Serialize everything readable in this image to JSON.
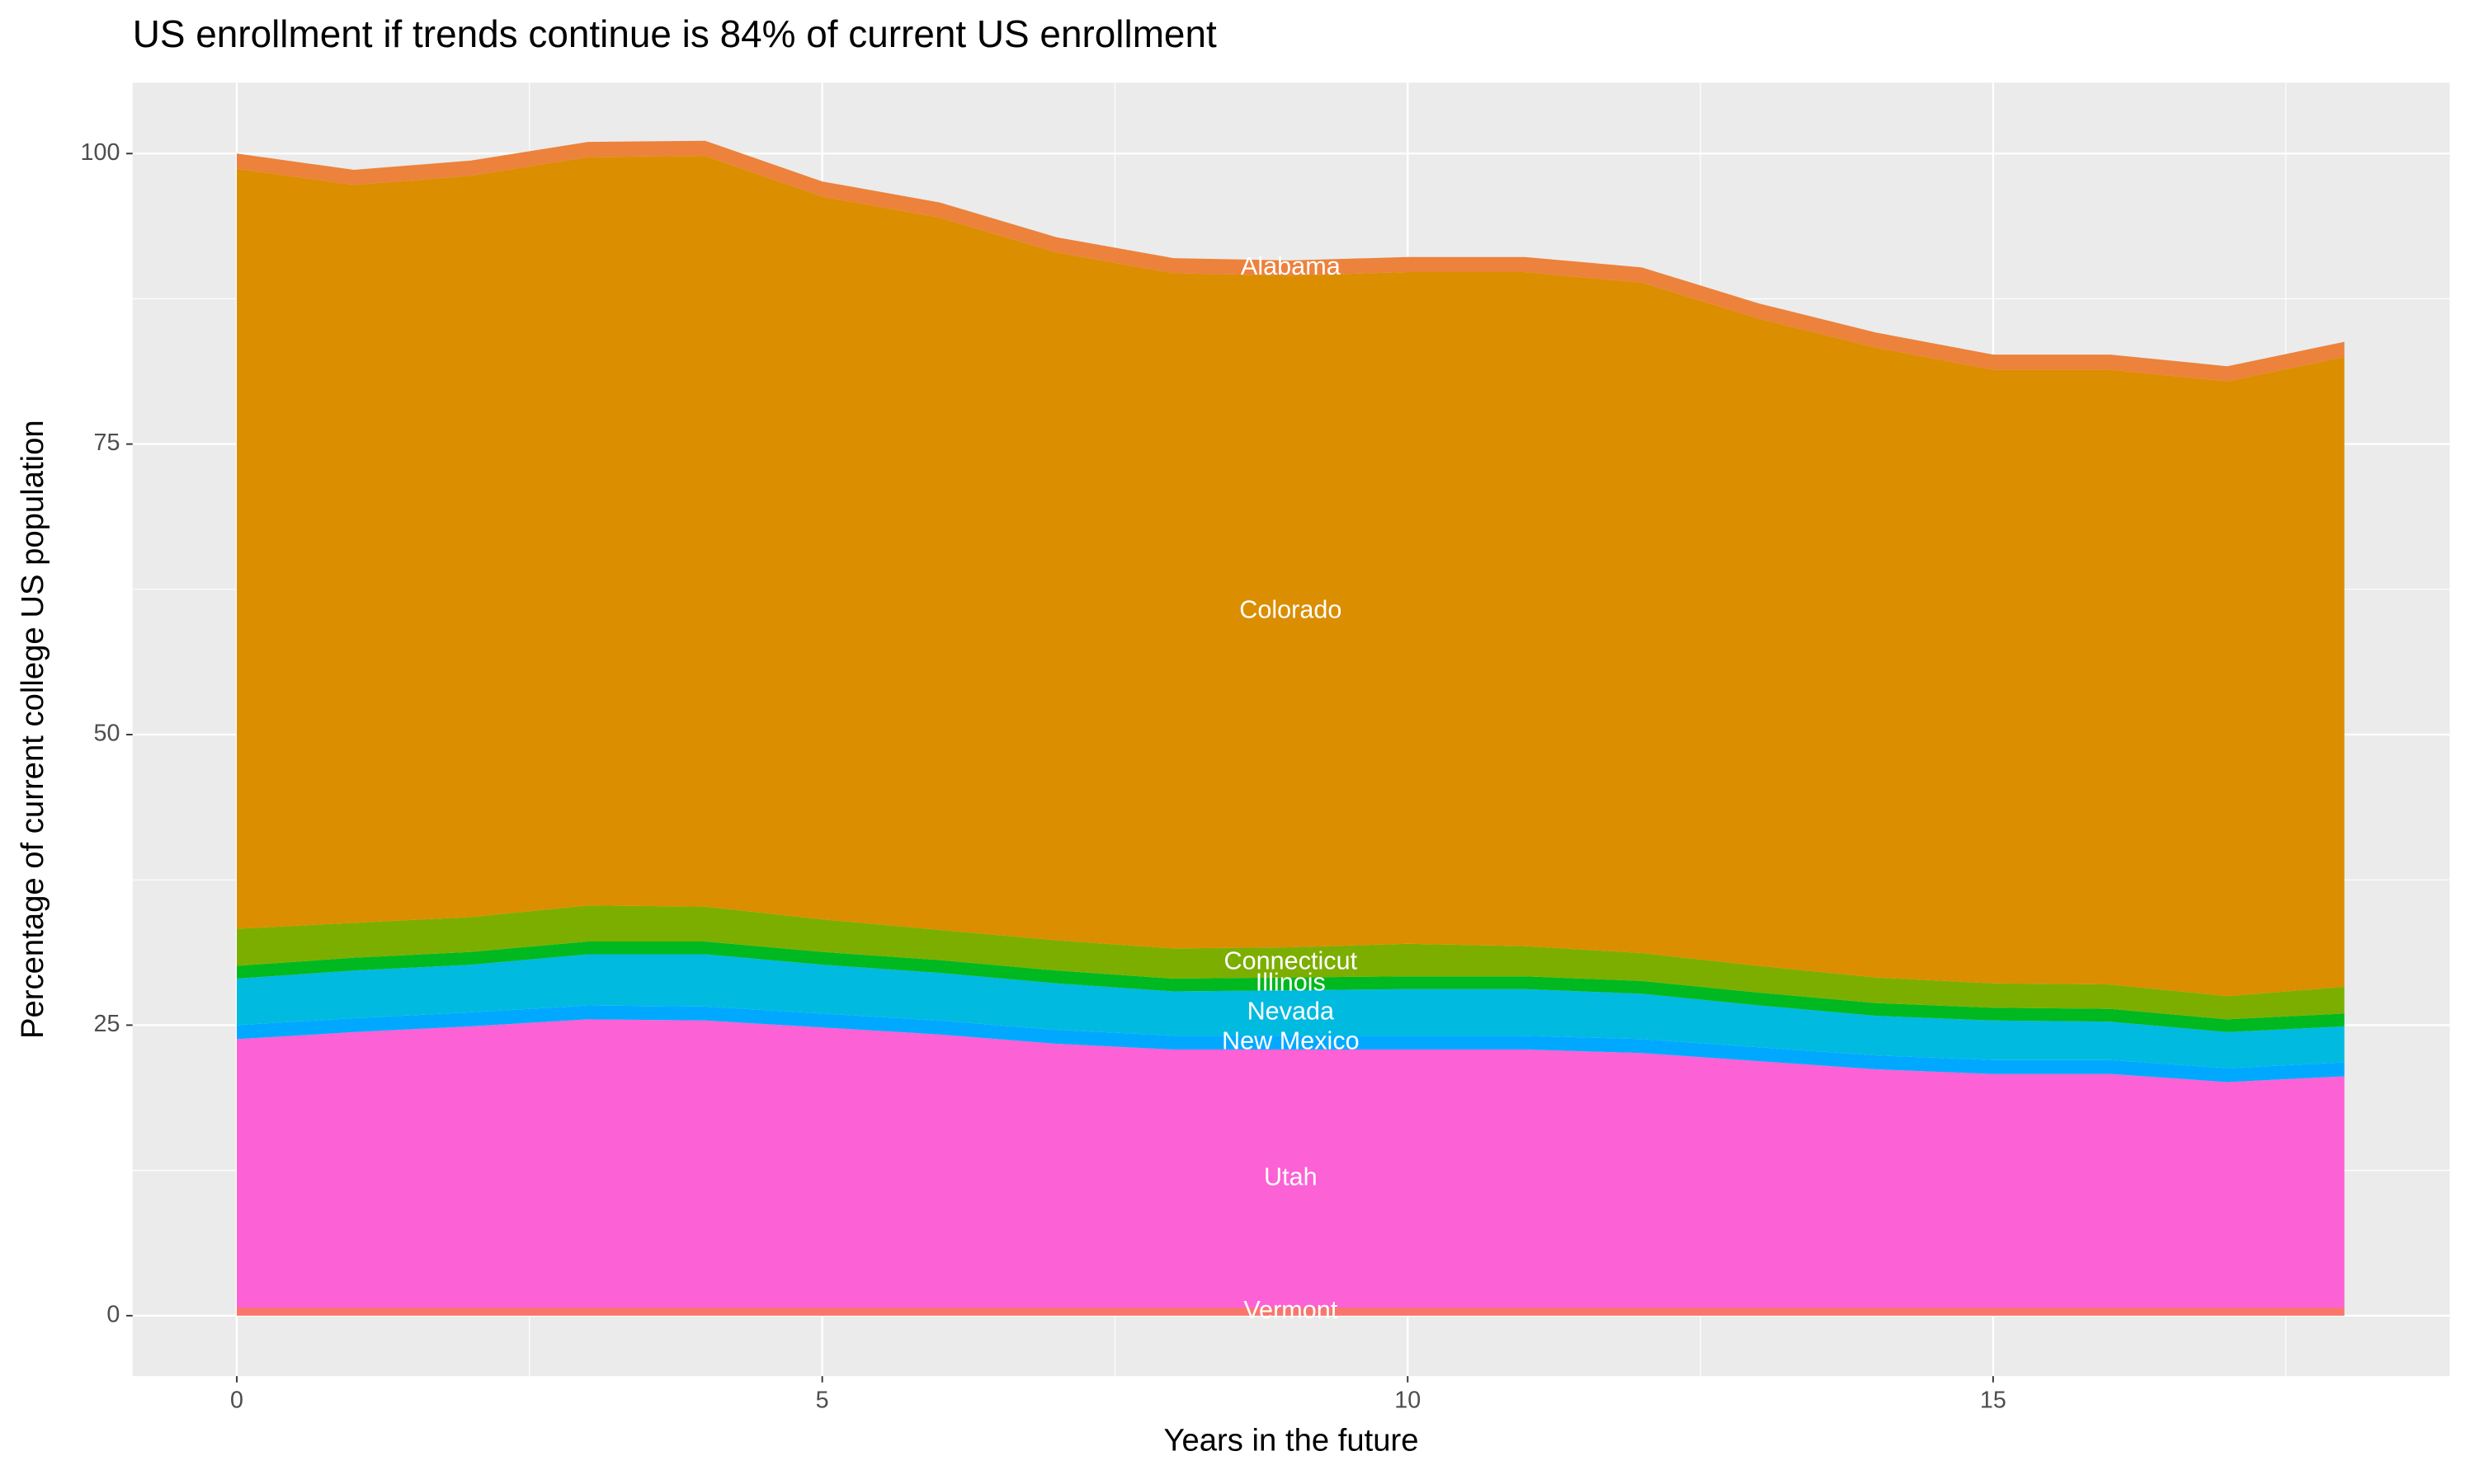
{
  "chart_data": {
    "type": "stacked-area",
    "title": "US enrollment if trends continue is 84% of current US enrollment",
    "x_label": "Years in the future",
    "y_label": "Percentage of current college US population",
    "x": [
      0,
      1,
      2,
      3,
      4,
      5,
      6,
      7,
      8,
      9,
      10,
      11,
      12,
      13,
      14,
      15,
      16,
      17,
      18
    ],
    "xlim": [
      -0.89,
      18.9
    ],
    "xticks": [
      0,
      5,
      10,
      15
    ],
    "ylim": [
      -5.2,
      106.1
    ],
    "yticks": [
      0,
      25,
      50,
      75,
      100
    ],
    "grid": true,
    "series": [
      {
        "name": "Vermont",
        "color": "#F8766D",
        "values": [
          0.7,
          0.7,
          0.7,
          0.7,
          0.7,
          0.7,
          0.7,
          0.7,
          0.7,
          0.7,
          0.7,
          0.7,
          0.7,
          0.7,
          0.7,
          0.7,
          0.7,
          0.7,
          0.7
        ]
      },
      {
        "name": "Utah",
        "color": "#FC61D5",
        "values": [
          23.1,
          23.7,
          24.2,
          24.8,
          24.7,
          24.1,
          23.5,
          22.7,
          22.2,
          22.2,
          22.2,
          22.2,
          21.9,
          21.2,
          20.5,
          20.1,
          20.1,
          19.4,
          19.9
        ]
      },
      {
        "name": "New Mexico",
        "color": "#00A9FF",
        "values": [
          1.2,
          1.2,
          1.2,
          1.2,
          1.2,
          1.2,
          1.2,
          1.2,
          1.2,
          1.2,
          1.2,
          1.2,
          1.2,
          1.2,
          1.2,
          1.2,
          1.2,
          1.2,
          1.2
        ]
      },
      {
        "name": "Nevada",
        "color": "#00BAE0",
        "values": [
          4.0,
          4.1,
          4.1,
          4.4,
          4.5,
          4.2,
          4.1,
          4.0,
          3.8,
          3.9,
          4.0,
          4.0,
          3.9,
          3.6,
          3.4,
          3.4,
          3.3,
          3.1,
          3.1
        ]
      },
      {
        "name": "Illinois",
        "color": "#00B81F",
        "values": [
          1.1,
          1.1,
          1.1,
          1.1,
          1.1,
          1.1,
          1.1,
          1.1,
          1.1,
          1.1,
          1.1,
          1.1,
          1.1,
          1.1,
          1.1,
          1.1,
          1.1,
          1.1,
          1.1
        ]
      },
      {
        "name": "Connecticut",
        "color": "#7CAE00",
        "values": [
          3.2,
          3.0,
          3.0,
          3.1,
          3.0,
          2.8,
          2.6,
          2.6,
          2.6,
          2.6,
          2.8,
          2.6,
          2.4,
          2.3,
          2.2,
          2.1,
          2.1,
          2.0,
          2.3
        ]
      },
      {
        "name": "Colorado",
        "color": "#DB8E00",
        "values": [
          65.4,
          63.5,
          63.8,
          64.4,
          64.6,
          62.2,
          61.3,
          59.2,
          58.1,
          57.8,
          57.8,
          58.0,
          57.7,
          55.7,
          54.2,
          52.8,
          52.9,
          52.9,
          54.2
        ]
      },
      {
        "name": "Alabama",
        "color": "#EC823C",
        "values": [
          1.3,
          1.3,
          1.3,
          1.3,
          1.3,
          1.3,
          1.3,
          1.3,
          1.3,
          1.3,
          1.3,
          1.3,
          1.3,
          1.3,
          1.3,
          1.3,
          1.3,
          1.3,
          1.3
        ]
      }
    ]
  }
}
